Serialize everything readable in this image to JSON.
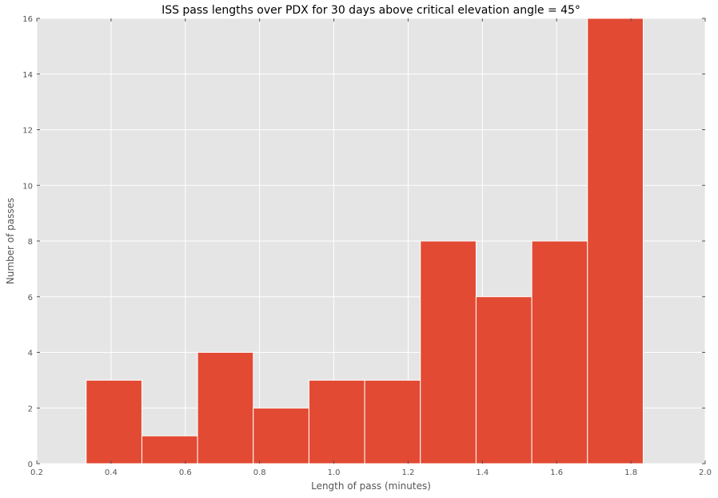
{
  "chart_data": {
    "type": "bar",
    "title": "ISS pass lengths over PDX for 30 days above critical elevation angle = 45°",
    "xlabel": "Length of pass (minutes)",
    "ylabel": "Number of passes",
    "xlim": [
      0.2,
      2.0
    ],
    "ylim": [
      0,
      16
    ],
    "xticks": [
      "0.2",
      "0.4",
      "0.6",
      "0.8",
      "1.0",
      "1.2",
      "1.4",
      "1.6",
      "1.8",
      "2.0"
    ],
    "yticks": [
      "0",
      "2",
      "4",
      "6",
      "8",
      "10",
      "12",
      "14",
      "16"
    ],
    "grid": true,
    "bin_edges": [
      0.333,
      0.483,
      0.633,
      0.783,
      0.933,
      1.083,
      1.233,
      1.383,
      1.533,
      1.683,
      1.833
    ],
    "values": [
      3,
      1,
      4,
      2,
      3,
      3,
      8,
      6,
      8,
      16
    ],
    "colors": {
      "bar": "#E24A33",
      "plot_background": "#E5E5E5",
      "grid": "#FFFFFF"
    }
  }
}
